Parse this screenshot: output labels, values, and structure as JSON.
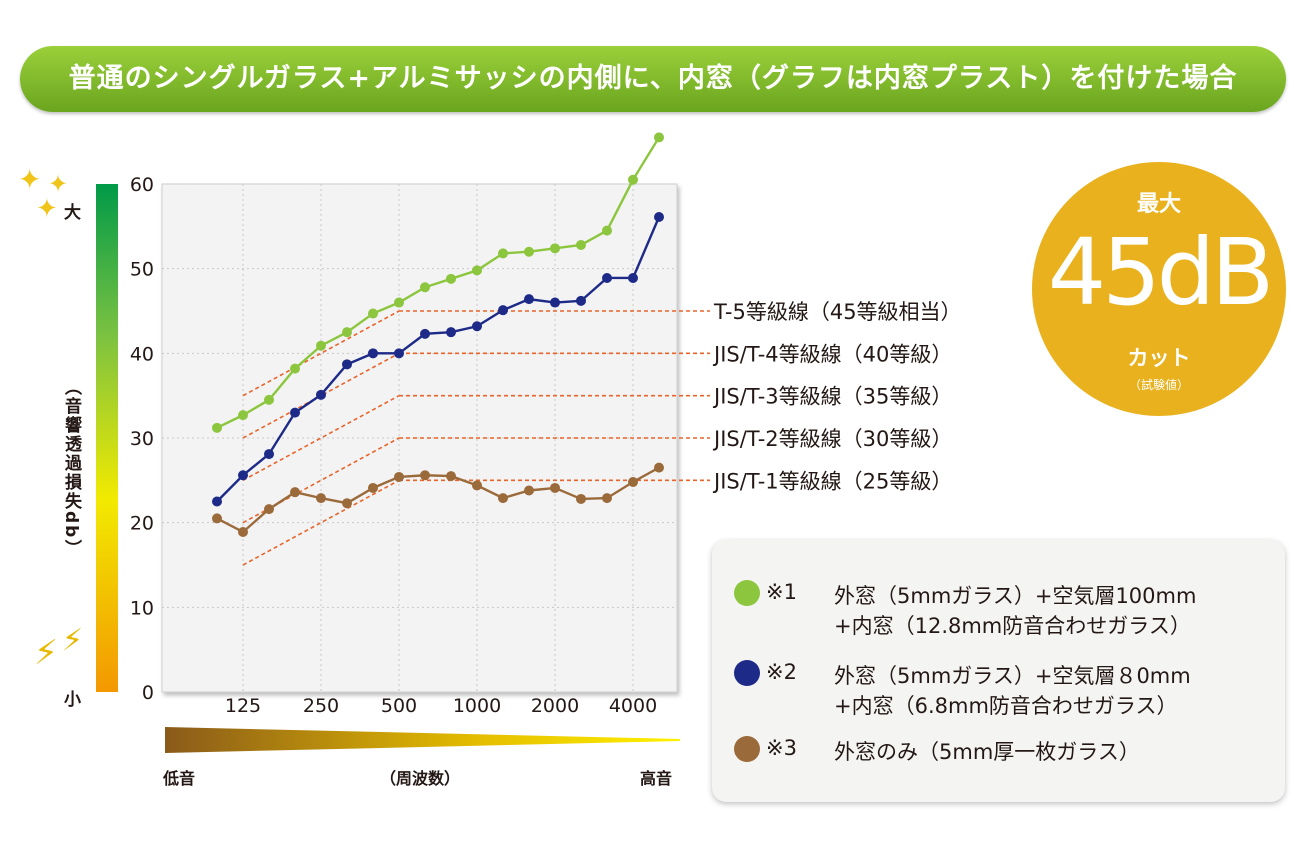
{
  "title": "普通のシングルガラス+アルミサッシの内側に、内窓（グラフは内窓プラスト）を付けた場合",
  "scale": {
    "top_label": "大",
    "bottom_label": "小",
    "axis_title": "（音響透過損失db）"
  },
  "frequency": {
    "low_label": "低音",
    "title": "（周波数）",
    "high_label": "高音"
  },
  "badge": {
    "line1": "最大",
    "value": "45dB",
    "line2": "カット",
    "note": "（試験値）"
  },
  "legend": [
    {
      "color": "#8cc63f",
      "tag": "※1",
      "lines": [
        "外窓（5mmガラス）+空気層100mm",
        "+内窓（12.8mm防音合わせガラス）"
      ]
    },
    {
      "color": "#1d2a87",
      "tag": "※2",
      "lines": [
        "外窓（5mmガラス）+空気層８0mm",
        "+内窓（6.8mm防音合わせガラス）"
      ]
    },
    {
      "color": "#9b6a3a",
      "tag": "※3",
      "lines": [
        "外窓のみ（5mm厚一枚ガラス）"
      ]
    }
  ],
  "chart_data": {
    "type": "line",
    "ylim": [
      0,
      60
    ],
    "y_ticks": [
      0,
      10,
      20,
      30,
      40,
      50,
      60
    ],
    "x_tick_labels": [
      "125",
      "250",
      "500",
      "1000",
      "2000",
      "4000"
    ],
    "x": [
      "100",
      "125",
      "160",
      "200",
      "250",
      "315",
      "400",
      "500",
      "630",
      "800",
      "1000",
      "1250",
      "1600",
      "2000",
      "2500",
      "3150",
      "4000",
      "5000"
    ],
    "series": [
      {
        "name": "※1",
        "color": "#8cc63f",
        "values": [
          31.2,
          32.7,
          34.5,
          38.2,
          40.9,
          42.5,
          44.7,
          46.0,
          47.8,
          48.8,
          49.8,
          51.8,
          52.0,
          52.4,
          52.8,
          54.5,
          60.5,
          65.5
        ]
      },
      {
        "name": "※2",
        "color": "#1d2a87",
        "values": [
          22.5,
          25.6,
          28.1,
          33.0,
          35.1,
          38.7,
          40.0,
          40.0,
          42.3,
          42.5,
          43.2,
          45.1,
          46.4,
          46.0,
          46.2,
          48.9,
          48.9,
          56.1
        ]
      },
      {
        "name": "※3",
        "color": "#9b6a3a",
        "values": [
          20.5,
          18.9,
          21.6,
          23.6,
          22.9,
          22.3,
          24.1,
          25.4,
          25.6,
          25.5,
          24.4,
          22.9,
          23.8,
          24.1,
          22.8,
          22.9,
          24.8,
          26.5
        ]
      }
    ],
    "reference_lines": [
      {
        "label": "T-5等級線（45等級相当）",
        "y": 45
      },
      {
        "label": "JIS/T-4等級線（40等級）",
        "y": 40
      },
      {
        "label": "JIS/T-3等級線（35等級）",
        "y": 35
      },
      {
        "label": "JIS/T-2等級線（30等級）",
        "y": 30
      },
      {
        "label": "JIS/T-1等級線（25等級）",
        "y": 25
      }
    ],
    "colors": {
      "reference": "#e8642a",
      "grid": "#c8c8c8",
      "plot_bg": "#f3f3f3"
    }
  }
}
